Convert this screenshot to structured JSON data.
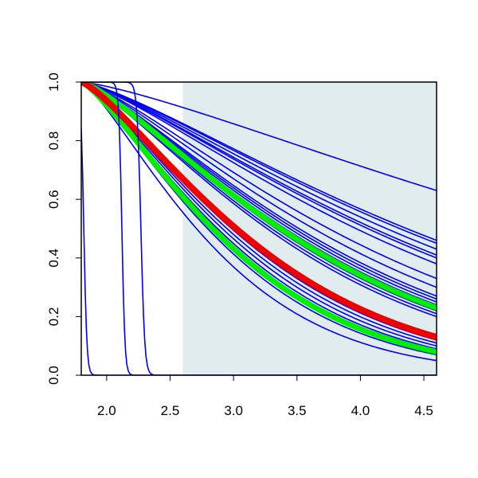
{
  "chart_data": {
    "type": "line",
    "title": "",
    "xlabel": "",
    "ylabel": "",
    "xlim": [
      1.8,
      4.6
    ],
    "ylim": [
      0.0,
      1.0
    ],
    "x_ticks": [
      "2.0",
      "2.5",
      "3.0",
      "3.5",
      "4.0",
      "4.5"
    ],
    "y_ticks": [
      "0.0",
      "0.2",
      "0.4",
      "0.6",
      "0.8",
      "1.0"
    ],
    "shaded_region": {
      "x_from": 2.6,
      "x_to": 4.6,
      "color": "#e0eced"
    },
    "grid": false,
    "x_start": 1.8,
    "x_end": 4.6,
    "series": [
      {
        "color": "#0000ee",
        "width": 1.6,
        "kind": "curve",
        "end": 0.63
      },
      {
        "color": "#0000ee",
        "width": 1.6,
        "kind": "curve",
        "end": 0.46
      },
      {
        "color": "#0000ee",
        "width": 1.6,
        "kind": "curve",
        "end": 0.45
      },
      {
        "color": "#0000ee",
        "width": 1.6,
        "kind": "curve",
        "end": 0.43
      },
      {
        "color": "#0000ee",
        "width": 1.6,
        "kind": "curve",
        "end": 0.41
      },
      {
        "color": "#0000ee",
        "width": 1.6,
        "kind": "curve",
        "end": 0.4
      },
      {
        "color": "#0000ee",
        "width": 1.6,
        "kind": "curve",
        "end": 0.38
      },
      {
        "color": "#0000ee",
        "width": 1.6,
        "kind": "curve",
        "end": 0.33
      },
      {
        "color": "#0000ee",
        "width": 1.6,
        "kind": "curve",
        "end": 0.3
      },
      {
        "color": "#0000ee",
        "width": 1.6,
        "kind": "curve",
        "end": 0.27
      },
      {
        "color": "#0000ee",
        "width": 1.6,
        "kind": "curve",
        "end": 0.26
      },
      {
        "color": "#0000ee",
        "width": 1.6,
        "kind": "curve",
        "end": 0.25
      },
      {
        "color": "#0000ee",
        "width": 1.6,
        "kind": "curve",
        "end": 0.24
      },
      {
        "color": "#0000ee",
        "width": 1.6,
        "kind": "curve",
        "end": 0.22
      },
      {
        "color": "#0000ee",
        "width": 1.6,
        "kind": "curve",
        "end": 0.21
      },
      {
        "color": "#0000ee",
        "width": 1.6,
        "kind": "curve",
        "end": 0.2
      },
      {
        "color": "#0000ee",
        "width": 1.6,
        "kind": "curve",
        "end": 0.13
      },
      {
        "color": "#0000ee",
        "width": 1.6,
        "kind": "curve",
        "end": 0.12
      },
      {
        "color": "#0000ee",
        "width": 1.6,
        "kind": "curve",
        "end": 0.11
      },
      {
        "color": "#0000ee",
        "width": 1.6,
        "kind": "curve",
        "end": 0.1
      },
      {
        "color": "#0000ee",
        "width": 1.6,
        "kind": "curve",
        "end": 0.09
      },
      {
        "color": "#0000ee",
        "width": 1.6,
        "kind": "curve",
        "end": 0.08
      },
      {
        "color": "#0000ee",
        "width": 1.6,
        "kind": "curve",
        "end": 0.07
      },
      {
        "color": "#0000ee",
        "width": 1.6,
        "kind": "curve",
        "end": 0.05
      },
      {
        "color": "#00ee00",
        "width": 7,
        "kind": "curve",
        "end": 0.23
      },
      {
        "color": "#00ee00",
        "width": 7,
        "kind": "curve",
        "end": 0.08
      },
      {
        "color": "#ee0000",
        "width": 8,
        "kind": "curve",
        "end": 0.13
      },
      {
        "color": "#0000ee",
        "width": 1.6,
        "kind": "drop",
        "center": 1.82,
        "steep": 0.012
      },
      {
        "color": "#0000ee",
        "width": 1.6,
        "kind": "drop",
        "center": 2.12,
        "steep": 0.012
      },
      {
        "color": "#0000ee",
        "width": 1.6,
        "kind": "drop",
        "center": 2.27,
        "steep": 0.015
      }
    ]
  }
}
